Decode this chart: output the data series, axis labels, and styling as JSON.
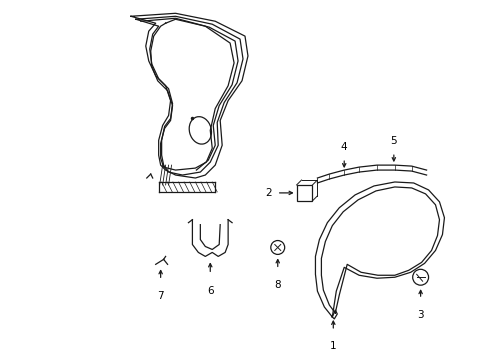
{
  "bg_color": "#ffffff",
  "line_color": "#1a1a1a",
  "fig_width": 4.89,
  "fig_height": 3.6,
  "dpi": 100,
  "lw": 0.9
}
